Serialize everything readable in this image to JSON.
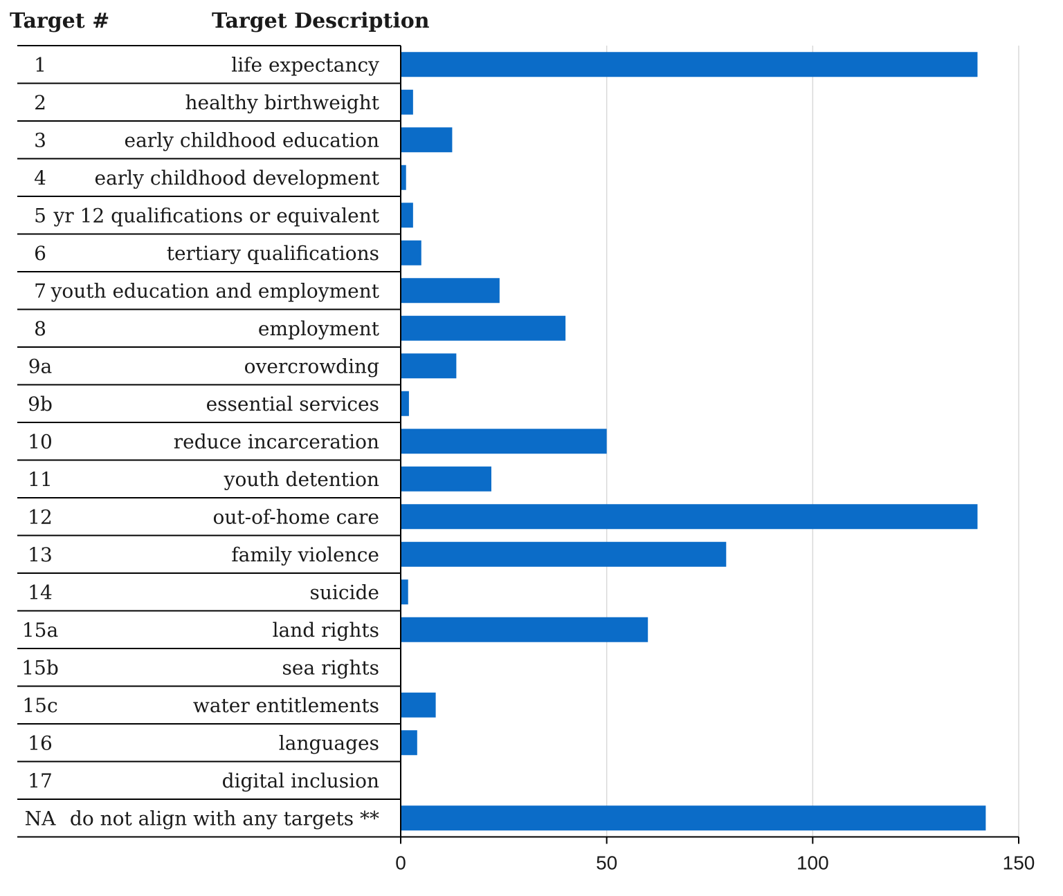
{
  "header": {
    "col1_label": "Target #",
    "col2_label": "Target Description"
  },
  "colors": {
    "bar": "#0b6cc8",
    "grid": "#d9d9d9",
    "rule": "#000000"
  },
  "chart_data": {
    "type": "bar",
    "orientation": "horizontal",
    "title": "",
    "xlabel": "",
    "ylabel": "",
    "xlim": [
      0,
      150
    ],
    "x_ticks": [
      "0",
      "50",
      "100",
      "150"
    ],
    "grid": true,
    "legend": "none",
    "rows": [
      {
        "target": "1",
        "description": "life expectancy",
        "value": 140
      },
      {
        "target": "2",
        "description": "healthy birthweight",
        "value": 3
      },
      {
        "target": "3",
        "description": "early childhood education",
        "value": 12.5
      },
      {
        "target": "4",
        "description": "early childhood development",
        "value": 1.3
      },
      {
        "target": "5",
        "description": "yr 12 qualifications or equivalent",
        "value": 3
      },
      {
        "target": "6",
        "description": "tertiary qualifications",
        "value": 5
      },
      {
        "target": "7",
        "description": "youth education and employment",
        "value": 24
      },
      {
        "target": "8",
        "description": "employment",
        "value": 40
      },
      {
        "target": "9a",
        "description": "overcrowding",
        "value": 13.5
      },
      {
        "target": "9b",
        "description": "essential services",
        "value": 2
      },
      {
        "target": "10",
        "description": "reduce incarceration",
        "value": 50
      },
      {
        "target": "11",
        "description": "youth detention",
        "value": 22
      },
      {
        "target": "12",
        "description": "out-of-home care",
        "value": 140
      },
      {
        "target": "13",
        "description": "family violence",
        "value": 79
      },
      {
        "target": "14",
        "description": "suicide",
        "value": 1.8
      },
      {
        "target": "15a",
        "description": "land rights",
        "value": 60
      },
      {
        "target": "15b",
        "description": "sea rights",
        "value": 0
      },
      {
        "target": "15c",
        "description": "water entitlements",
        "value": 8.5
      },
      {
        "target": "16",
        "description": "languages",
        "value": 4
      },
      {
        "target": "17",
        "description": "digital inclusion",
        "value": 0
      },
      {
        "target": "NA",
        "description": "do not align with any targets **",
        "value": 142
      }
    ]
  }
}
